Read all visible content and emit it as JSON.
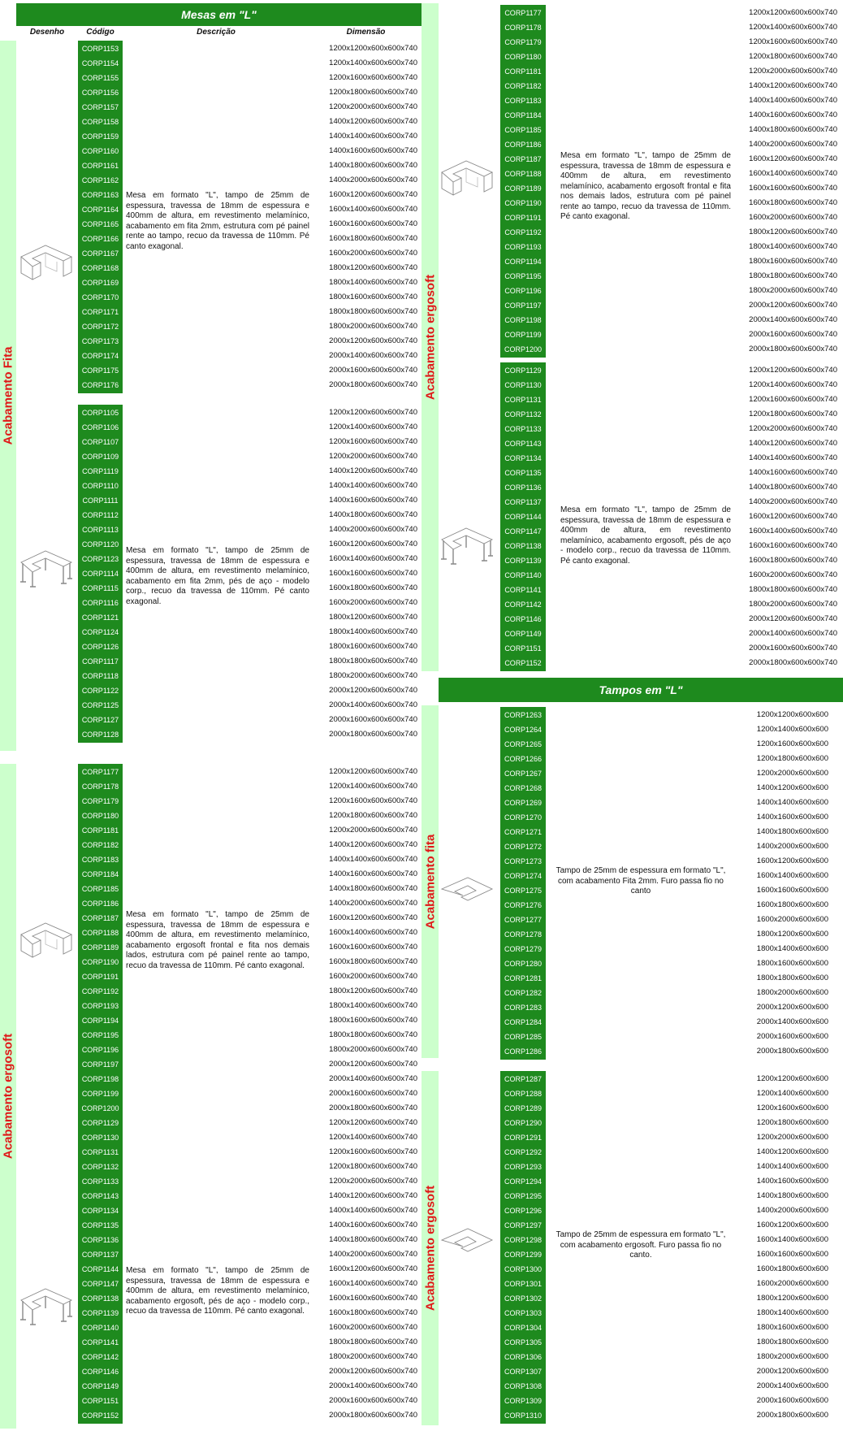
{
  "mesas": {
    "title": "Mesas em \"L\"",
    "headers": {
      "desenho": "Desenho",
      "codigo": "Código",
      "descricao": "Descrição",
      "dimensao": "Dimensão"
    },
    "groups": [
      {
        "label": "Acabamento Fita",
        "blocks": [
          {
            "drawing": "l-desk-panel-drawing",
            "description": "Mesa em formato \"L\", tampo de 25mm de espessura, travessa de 18mm de espessura e 400mm de altura, em revestimento melamínico, acabamento em fita 2mm, estrutura com pé painel rente ao tampo, recuo da travessa de 110mm. Pé canto exagonal.",
            "rows": [
              [
                "CORP1153",
                "1200x1200x600x600x740"
              ],
              [
                "CORP1154",
                "1200x1400x600x600x740"
              ],
              [
                "CORP1155",
                "1200x1600x600x600x740"
              ],
              [
                "CORP1156",
                "1200x1800x600x600x740"
              ],
              [
                "CORP1157",
                "1200x2000x600x600x740"
              ],
              [
                "CORP1158",
                "1400x1200x600x600x740"
              ],
              [
                "CORP1159",
                "1400x1400x600x600x740"
              ],
              [
                "CORP1160",
                "1400x1600x600x600x740"
              ],
              [
                "CORP1161",
                "1400x1800x600x600x740"
              ],
              [
                "CORP1162",
                "1400x2000x600x600x740"
              ],
              [
                "CORP1163",
                "1600x1200x600x600x740"
              ],
              [
                "CORP1164",
                "1600x1400x600x600x740"
              ],
              [
                "CORP1165",
                "1600x1600x600x600x740"
              ],
              [
                "CORP1166",
                "1600x1800x600x600x740"
              ],
              [
                "CORP1167",
                "1600x2000x600x600x740"
              ],
              [
                "CORP1168",
                "1800x1200x600x600x740"
              ],
              [
                "CORP1169",
                "1800x1400x600x600x740"
              ],
              [
                "CORP1170",
                "1800x1600x600x600x740"
              ],
              [
                "CORP1171",
                "1800x1800x600x600x740"
              ],
              [
                "CORP1172",
                "1800x2000x600x600x740"
              ],
              [
                "CORP1173",
                "2000x1200x600x600x740"
              ],
              [
                "CORP1174",
                "2000x1400x600x600x740"
              ],
              [
                "CORP1175",
                "2000x1600x600x600x740"
              ],
              [
                "CORP1176",
                "2000x1800x600x600x740"
              ]
            ]
          },
          {
            "drawing": "l-desk-steel-legs-drawing",
            "description": "Mesa em formato \"L\", tampo de 25mm de espessura, travessa de 18mm de espessura e 400mm de altura, em revestimento melamínico, acabamento em fita 2mm, pés de aço - modelo corp., recuo da travessa de 110mm. Pé canto exagonal.",
            "rows": [
              [
                "CORP1105",
                "1200x1200x600x600x740"
              ],
              [
                "CORP1106",
                "1200x1400x600x600x740"
              ],
              [
                "CORP1107",
                "1200x1600x600x600x740"
              ],
              [
                "CORP1109",
                "1200x2000x600x600x740"
              ],
              [
                "CORP1119",
                "1400x1200x600x600x740"
              ],
              [
                "CORP1110",
                "1400x1400x600x600x740"
              ],
              [
                "CORP1111",
                "1400x1600x600x600x740"
              ],
              [
                "CORP1112",
                "1400x1800x600x600x740"
              ],
              [
                "CORP1113",
                "1400x2000x600x600x740"
              ],
              [
                "CORP1120",
                "1600x1200x600x600x740"
              ],
              [
                "CORP1123",
                "1600x1400x600x600x740"
              ],
              [
                "CORP1114",
                "1600x1600x600x600x740"
              ],
              [
                "CORP1115",
                "1600x1800x600x600x740"
              ],
              [
                "CORP1116",
                "1600x2000x600x600x740"
              ],
              [
                "CORP1121",
                "1800x1200x600x600x740"
              ],
              [
                "CORP1124",
                "1800x1400x600x600x740"
              ],
              [
                "CORP1126",
                "1800x1600x600x600x740"
              ],
              [
                "CORP1117",
                "1800x1800x600x600x740"
              ],
              [
                "CORP1118",
                "1800x2000x600x600x740"
              ],
              [
                "CORP1122",
                "2000x1200x600x600x740"
              ],
              [
                "CORP1125",
                "2000x1400x600x600x740"
              ],
              [
                "CORP1127",
                "2000x1600x600x600x740"
              ],
              [
                "CORP1128",
                "2000x1800x600x600x740"
              ]
            ]
          }
        ]
      },
      {
        "label": "Acabamento ergosoft",
        "blocks": [
          {
            "drawing": "l-desk-panel-drawing",
            "description": "Mesa em formato \"L\", tampo de 25mm de espessura, travessa de 18mm de espessura e 400mm de altura, em revestimento melamínico, acabamento ergosoft frontal e fita nos demais lados, estrutura com pé painel rente ao tampo, recuo da travessa de 110mm. Pé canto exagonal.",
            "rows": [
              [
                "CORP1177",
                "1200x1200x600x600x740"
              ],
              [
                "CORP1178",
                "1200x1400x600x600x740"
              ],
              [
                "CORP1179",
                "1200x1600x600x600x740"
              ],
              [
                "CORP1180",
                "1200x1800x600x600x740"
              ],
              [
                "CORP1181",
                "1200x2000x600x600x740"
              ],
              [
                "CORP1182",
                "1400x1200x600x600x740"
              ],
              [
                "CORP1183",
                "1400x1400x600x600x740"
              ],
              [
                "CORP1184",
                "1400x1600x600x600x740"
              ],
              [
                "CORP1185",
                "1400x1800x600x600x740"
              ],
              [
                "CORP1186",
                "1400x2000x600x600x740"
              ],
              [
                "CORP1187",
                "1600x1200x600x600x740"
              ],
              [
                "CORP1188",
                "1600x1400x600x600x740"
              ],
              [
                "CORP1189",
                "1600x1600x600x600x740"
              ],
              [
                "CORP1190",
                "1600x1800x600x600x740"
              ],
              [
                "CORP1191",
                "1600x2000x600x600x740"
              ],
              [
                "CORP1192",
                "1800x1200x600x600x740"
              ],
              [
                "CORP1193",
                "1800x1400x600x600x740"
              ],
              [
                "CORP1194",
                "1800x1600x600x600x740"
              ],
              [
                "CORP1195",
                "1800x1800x600x600x740"
              ],
              [
                "CORP1196",
                "1800x2000x600x600x740"
              ],
              [
                "CORP1197",
                "2000x1200x600x600x740"
              ],
              [
                "CORP1198",
                "2000x1400x600x600x740"
              ],
              [
                "CORP1199",
                "2000x1600x600x600x740"
              ],
              [
                "CORP1200",
                "2000x1800x600x600x740"
              ]
            ]
          },
          {
            "drawing": "l-desk-steel-legs-drawing",
            "description": "Mesa em formato \"L\", tampo de 25mm de espessura, travessa de 18mm de espessura e 400mm de altura, em revestimento melamínico, acabamento ergosoft, pés de aço - modelo corp., recuo da travessa de 110mm. Pé canto exagonal.",
            "rows": [
              [
                "CORP1129",
                "1200x1200x600x600x740"
              ],
              [
                "CORP1130",
                "1200x1400x600x600x740"
              ],
              [
                "CORP1131",
                "1200x1600x600x600x740"
              ],
              [
                "CORP1132",
                "1200x1800x600x600x740"
              ],
              [
                "CORP1133",
                "1200x2000x600x600x740"
              ],
              [
                "CORP1143",
                "1400x1200x600x600x740"
              ],
              [
                "CORP1134",
                "1400x1400x600x600x740"
              ],
              [
                "CORP1135",
                "1400x1600x600x600x740"
              ],
              [
                "CORP1136",
                "1400x1800x600x600x740"
              ],
              [
                "CORP1137",
                "1400x2000x600x600x740"
              ],
              [
                "CORP1144",
                "1600x1200x600x600x740"
              ],
              [
                "CORP1147",
                "1600x1400x600x600x740"
              ],
              [
                "CORP1138",
                "1600x1600x600x600x740"
              ],
              [
                "CORP1139",
                "1600x1800x600x600x740"
              ],
              [
                "CORP1140",
                "1600x2000x600x600x740"
              ],
              [
                "CORP1141",
                "1800x1800x600x600x740"
              ],
              [
                "CORP1142",
                "1800x2000x600x600x740"
              ],
              [
                "CORP1146",
                "2000x1200x600x600x740"
              ],
              [
                "CORP1149",
                "2000x1400x600x600x740"
              ],
              [
                "CORP1151",
                "2000x1600x600x600x740"
              ],
              [
                "CORP1152",
                "2000x1800x600x600x740"
              ]
            ]
          }
        ]
      }
    ]
  },
  "tampos": {
    "title": "Tampos em \"L\"",
    "groups": [
      {
        "label": "Acabamento fita",
        "drawing": "l-top-drawing",
        "description": "Tampo de 25mm de espessura em formato \"L\", com acabamento Fita 2mm. Furo passa fio no canto",
        "rows": [
          [
            "CORP1263",
            "1200x1200x600x600"
          ],
          [
            "CORP1264",
            "1200x1400x600x600"
          ],
          [
            "CORP1265",
            "1200x1600x600x600"
          ],
          [
            "CORP1266",
            "1200x1800x600x600"
          ],
          [
            "CORP1267",
            "1200x2000x600x600"
          ],
          [
            "CORP1268",
            "1400x1200x600x600"
          ],
          [
            "CORP1269",
            "1400x1400x600x600"
          ],
          [
            "CORP1270",
            "1400x1600x600x600"
          ],
          [
            "CORP1271",
            "1400x1800x600x600"
          ],
          [
            "CORP1272",
            "1400x2000x600x600"
          ],
          [
            "CORP1273",
            "1600x1200x600x600"
          ],
          [
            "CORP1274",
            "1600x1400x600x600"
          ],
          [
            "CORP1275",
            "1600x1600x600x600"
          ],
          [
            "CORP1276",
            "1600x1800x600x600"
          ],
          [
            "CORP1277",
            "1600x2000x600x600"
          ],
          [
            "CORP1278",
            "1800x1200x600x600"
          ],
          [
            "CORP1279",
            "1800x1400x600x600"
          ],
          [
            "CORP1280",
            "1800x1600x600x600"
          ],
          [
            "CORP1281",
            "1800x1800x600x600"
          ],
          [
            "CORP1282",
            "1800x2000x600x600"
          ],
          [
            "CORP1283",
            "2000x1200x600x600"
          ],
          [
            "CORP1284",
            "2000x1400x600x600"
          ],
          [
            "CORP1285",
            "2000x1600x600x600"
          ],
          [
            "CORP1286",
            "2000x1800x600x600"
          ]
        ]
      },
      {
        "label": "Acabamento ergosoft",
        "drawing": "l-top-drawing",
        "description": "Tampo de 25mm de espessura em formato \"L\", com acabamento ergosoft. Furo passa fio no canto.",
        "rows": [
          [
            "CORP1287",
            "1200x1200x600x600"
          ],
          [
            "CORP1288",
            "1200x1400x600x600"
          ],
          [
            "CORP1289",
            "1200x1600x600x600"
          ],
          [
            "CORP1290",
            "1200x1800x600x600"
          ],
          [
            "CORP1291",
            "1200x2000x600x600"
          ],
          [
            "CORP1292",
            "1400x1200x600x600"
          ],
          [
            "CORP1293",
            "1400x1400x600x600"
          ],
          [
            "CORP1294",
            "1400x1600x600x600"
          ],
          [
            "CORP1295",
            "1400x1800x600x600"
          ],
          [
            "CORP1296",
            "1400x2000x600x600"
          ],
          [
            "CORP1297",
            "1600x1200x600x600"
          ],
          [
            "CORP1298",
            "1600x1400x600x600"
          ],
          [
            "CORP1299",
            "1600x1600x600x600"
          ],
          [
            "CORP1300",
            "1600x1800x600x600"
          ],
          [
            "CORP1301",
            "1600x2000x600x600"
          ],
          [
            "CORP1302",
            "1800x1200x600x600"
          ],
          [
            "CORP1303",
            "1800x1400x600x600"
          ],
          [
            "CORP1304",
            "1800x1600x600x600"
          ],
          [
            "CORP1305",
            "1800x1800x600x600"
          ],
          [
            "CORP1306",
            "1800x2000x600x600"
          ],
          [
            "CORP1307",
            "2000x1200x600x600"
          ],
          [
            "CORP1308",
            "2000x1400x600x600"
          ],
          [
            "CORP1309",
            "2000x1600x600x600"
          ],
          [
            "CORP1310",
            "2000x1800x600x600"
          ]
        ]
      }
    ]
  },
  "colors": {
    "banner": "#1e8a1e",
    "code_column": "#1e8a1e",
    "side_band": "#ccffcc",
    "side_label": "#e01818"
  }
}
